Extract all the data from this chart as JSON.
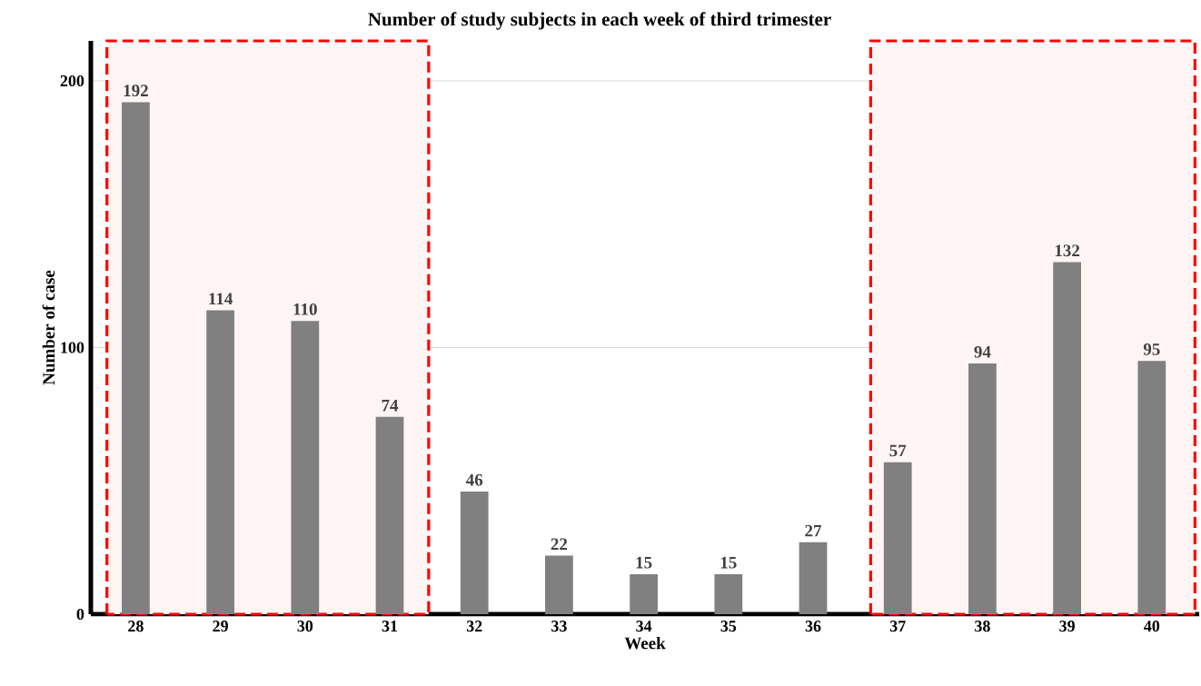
{
  "chart_data": {
    "type": "bar",
    "title": "Number of study subjects in each week of third trimester",
    "xlabel": "Week",
    "ylabel": "Number of case",
    "x": [
      28,
      29,
      30,
      31,
      32,
      33,
      34,
      35,
      36,
      37,
      38,
      39,
      40
    ],
    "values": [
      192,
      114,
      110,
      74,
      46,
      22,
      15,
      15,
      27,
      57,
      94,
      132,
      95
    ],
    "value_labels": [
      "192",
      "114",
      "110",
      "74",
      "46",
      "22",
      "15",
      "15",
      "27",
      "57",
      "94",
      "132",
      "95"
    ],
    "color": "#808080",
    "xlim": [
      27.47,
      40.56
    ],
    "xticks": [
      28,
      29,
      30,
      31,
      32,
      33,
      34,
      35,
      36,
      37,
      38,
      39,
      40
    ],
    "ylim": [
      0,
      215
    ],
    "yticks": [
      0,
      100,
      200
    ],
    "grid": "y",
    "bands": [
      {
        "axis": "x",
        "from": 27.66,
        "to": 31.46,
        "color": "#ff0000"
      },
      {
        "axis": "x",
        "from": 36.68,
        "to": 40.51,
        "color": "#ff0000"
      }
    ]
  }
}
